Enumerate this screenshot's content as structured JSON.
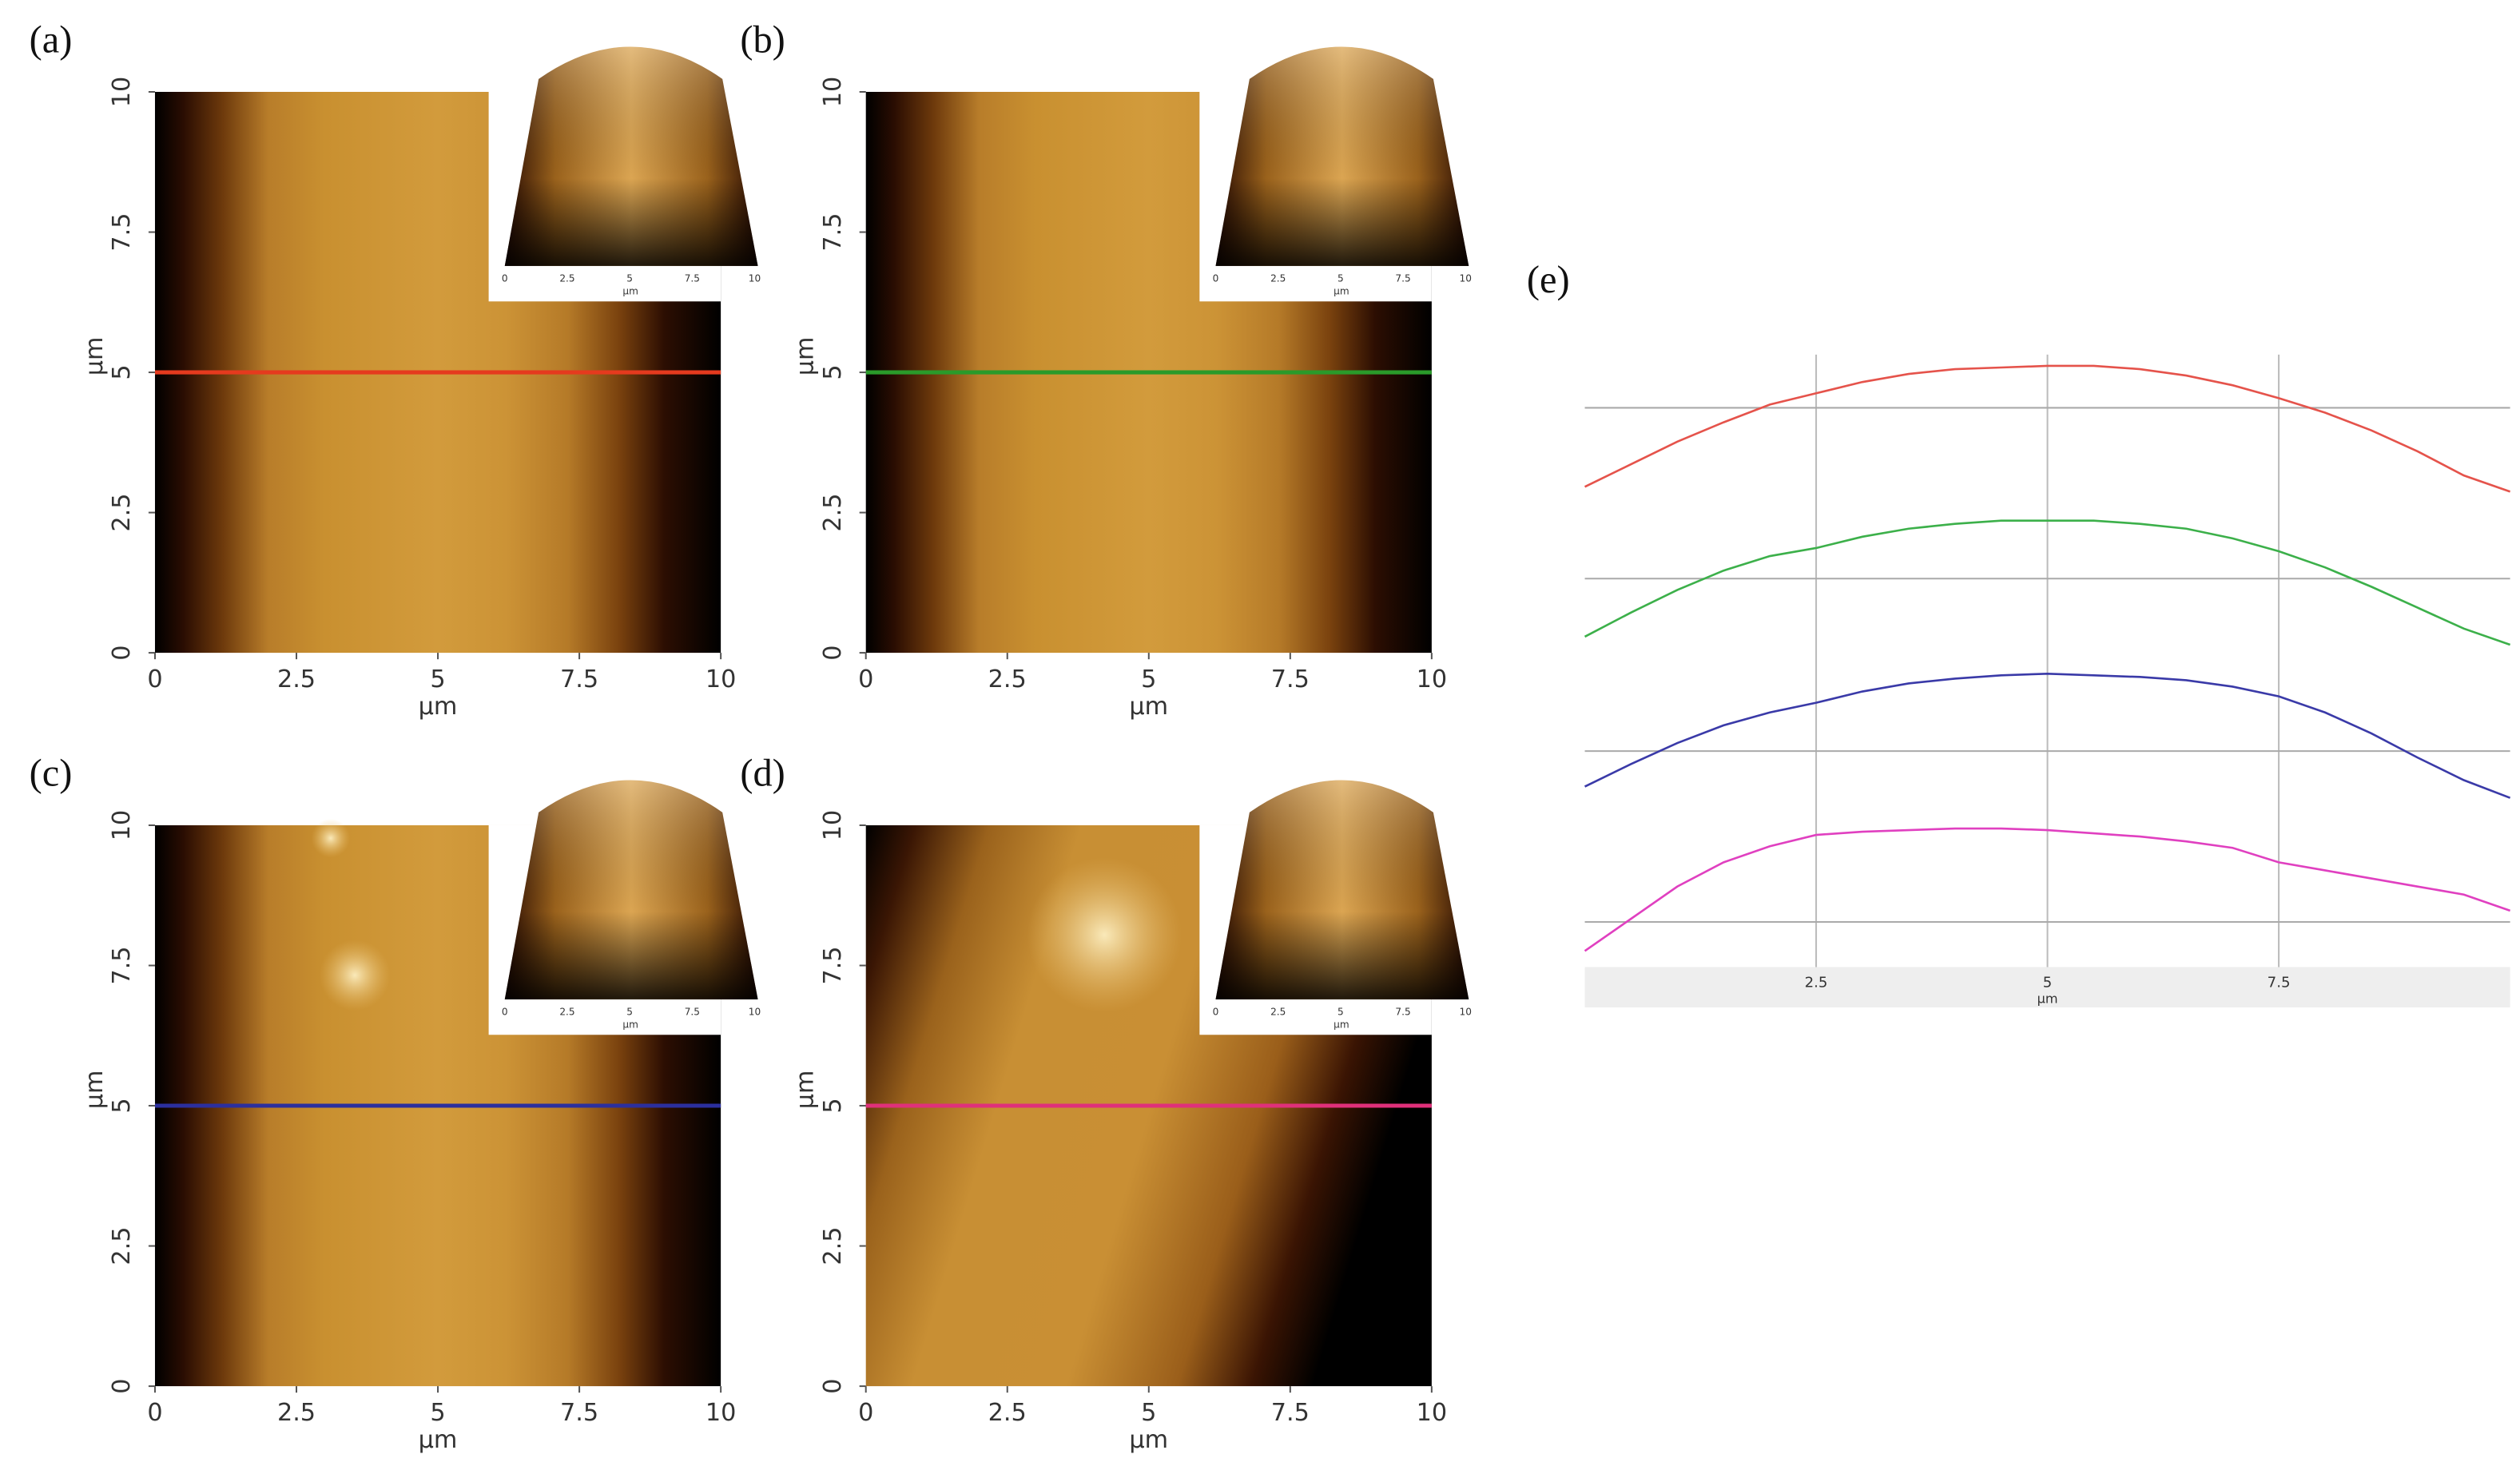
{
  "chart_data": [
    {
      "type": "image",
      "label": "(a)",
      "xlabel": "µm",
      "ylabel": "µm",
      "xlim": [
        0,
        10
      ],
      "ylim": [
        0,
        10
      ],
      "xticks": [
        0,
        2.5,
        5,
        7.5,
        10
      ],
      "yticks": [
        0,
        2.5,
        5,
        7.5,
        10
      ],
      "profile_y": 5,
      "profile_color": "#e53a1e",
      "inset": {
        "xticks": [
          0,
          2.5,
          5,
          7.5,
          10
        ],
        "xlabel": "µm"
      }
    },
    {
      "type": "image",
      "label": "(b)",
      "xlabel": "µm",
      "ylabel": "µm",
      "xlim": [
        0,
        10
      ],
      "ylim": [
        0,
        10
      ],
      "xticks": [
        0,
        2.5,
        5,
        7.5,
        10
      ],
      "yticks": [
        0,
        2.5,
        5,
        7.5,
        10
      ],
      "profile_y": 5,
      "profile_color": "#2a9a2a",
      "inset": {
        "xticks": [
          0,
          2.5,
          5,
          7.5,
          10
        ],
        "xlabel": "µm"
      }
    },
    {
      "type": "image",
      "label": "(c)",
      "xlabel": "µm",
      "ylabel": "µm",
      "xlim": [
        0,
        10
      ],
      "ylim": [
        0,
        10
      ],
      "xticks": [
        0,
        2.5,
        5,
        7.5,
        10
      ],
      "yticks": [
        0,
        2.5,
        5,
        7.5,
        10
      ],
      "profile_y": 5,
      "profile_color": "#2b2f9e",
      "inset": {
        "xticks": [
          0,
          2.5,
          5,
          7.5,
          10
        ],
        "xlabel": "µm"
      }
    },
    {
      "type": "image",
      "label": "(d)",
      "xlabel": "µm",
      "ylabel": "µm",
      "xlim": [
        0,
        10
      ],
      "ylim": [
        0,
        10
      ],
      "xticks": [
        0,
        2.5,
        5,
        7.5,
        10
      ],
      "yticks": [
        0,
        2.5,
        5,
        7.5,
        10
      ],
      "profile_y": 5,
      "profile_color": "#e0307a",
      "inset": {
        "xticks": [
          0,
          2.5,
          5,
          7.5,
          10
        ],
        "xlabel": "µm"
      }
    },
    {
      "type": "line",
      "label": "(e)",
      "xlabel": "µm",
      "xlim": [
        0,
        10
      ],
      "ylim": [
        0,
        38
      ],
      "xticks": [
        2.5,
        5,
        7.5
      ],
      "hlines": [
        34.7,
        24.1,
        13.4,
        2.8
      ],
      "x": [
        0,
        0.5,
        1,
        1.5,
        2,
        2.5,
        3,
        3.5,
        4,
        4.5,
        5,
        5.5,
        6,
        6.5,
        7,
        7.5,
        8,
        8.5,
        9,
        9.5,
        10
      ],
      "series": [
        {
          "color": "#e5534b",
          "values": [
            29.8,
            31.2,
            32.6,
            33.8,
            34.9,
            35.6,
            36.3,
            36.8,
            37.1,
            37.2,
            37.3,
            37.3,
            37.1,
            36.7,
            36.1,
            35.3,
            34.4,
            33.3,
            32.0,
            30.5,
            29.5
          ]
        },
        {
          "color": "#3cb04a",
          "values": [
            20.5,
            22.0,
            23.4,
            24.6,
            25.5,
            26.0,
            26.7,
            27.2,
            27.5,
            27.7,
            27.7,
            27.7,
            27.5,
            27.2,
            26.6,
            25.8,
            24.8,
            23.6,
            22.3,
            21.0,
            20.0
          ]
        },
        {
          "color": "#3a3aa8",
          "values": [
            11.2,
            12.6,
            13.9,
            15.0,
            15.8,
            16.4,
            17.1,
            17.6,
            17.9,
            18.1,
            18.2,
            18.1,
            18.0,
            17.8,
            17.4,
            16.8,
            15.8,
            14.5,
            13.0,
            11.6,
            10.5
          ]
        },
        {
          "color": "#e040c0",
          "values": [
            1.0,
            3.0,
            5.0,
            6.5,
            7.5,
            8.2,
            8.4,
            8.5,
            8.6,
            8.6,
            8.5,
            8.3,
            8.1,
            7.8,
            7.4,
            6.5,
            6.0,
            5.5,
            5.0,
            4.5,
            3.5
          ]
        }
      ]
    }
  ]
}
